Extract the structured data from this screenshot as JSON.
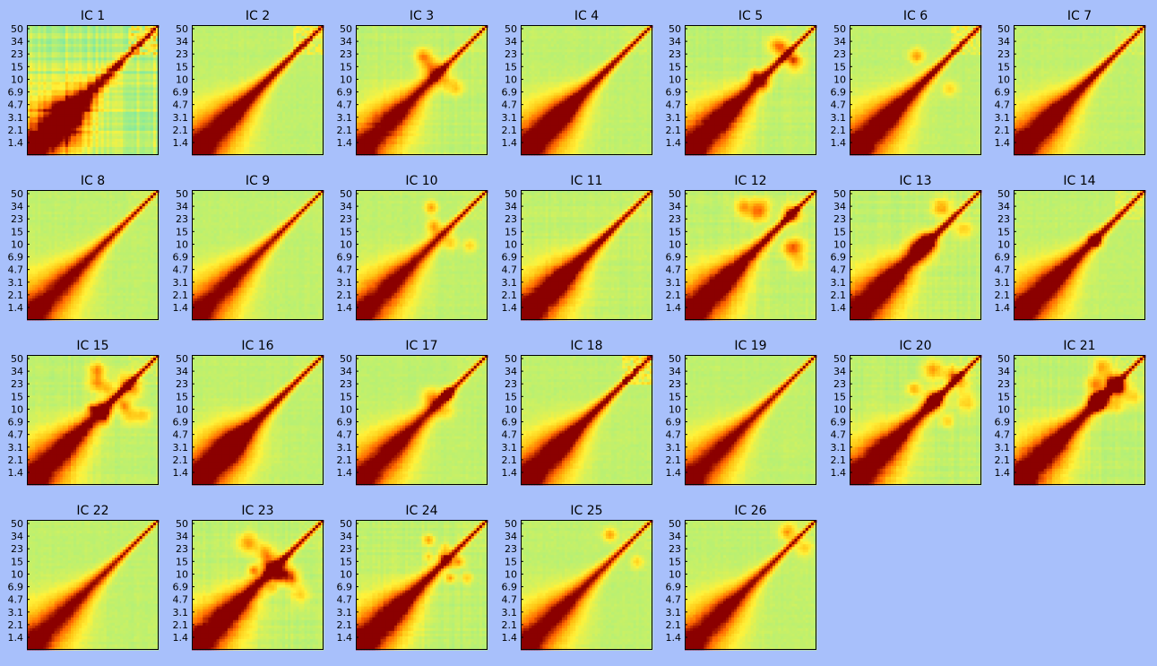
{
  "chart_data": {
    "type": "heatmap",
    "layout": {
      "rows": 4,
      "columns": 7
    },
    "colors": {
      "background": "#a8c0fb",
      "colormap": [
        "#7fe9a4",
        "#b9f072",
        "#fff23a",
        "#ffbf10",
        "#ff6600",
        "#8b0000"
      ]
    },
    "yticks": [
      "50",
      "34",
      "23",
      "15",
      "10",
      "6.9",
      "4.7",
      "3.1",
      "2.1",
      "1.4"
    ],
    "panels": [
      {
        "title": "IC 1",
        "diag_strength": 1.0,
        "blob": 0.95,
        "upper_noise": 0.9,
        "stripes": 0.9,
        "spots": 0
      },
      {
        "title": "IC 2",
        "diag_strength": 1.0,
        "blob": 0.2,
        "upper_noise": 0.5,
        "stripes": 0.1,
        "spots": 0
      },
      {
        "title": "IC 3",
        "diag_strength": 0.9,
        "blob": 0.25,
        "upper_noise": 0.1,
        "stripes": 0.2,
        "spots": 2
      },
      {
        "title": "IC 4",
        "diag_strength": 1.0,
        "blob": 0.35,
        "upper_noise": 0.1,
        "stripes": 0.1,
        "spots": 0
      },
      {
        "title": "IC 5",
        "diag_strength": 1.0,
        "blob": 0.3,
        "upper_noise": 0.1,
        "stripes": 0.2,
        "spots": 3
      },
      {
        "title": "IC 6",
        "diag_strength": 1.0,
        "blob": 0.25,
        "upper_noise": 0.5,
        "stripes": 0.1,
        "spots": 1
      },
      {
        "title": "IC 7",
        "diag_strength": 1.0,
        "blob": 0.25,
        "upper_noise": 0.2,
        "stripes": 0.1,
        "spots": 0
      },
      {
        "title": "IC 8",
        "diag_strength": 0.9,
        "blob": 0.15,
        "upper_noise": 0.1,
        "stripes": 0.1,
        "spots": 0
      },
      {
        "title": "IC 9",
        "diag_strength": 0.9,
        "blob": 0.15,
        "upper_noise": 0.0,
        "stripes": 0.1,
        "spots": 0
      },
      {
        "title": "IC 10",
        "diag_strength": 0.9,
        "blob": 0.2,
        "upper_noise": 0.1,
        "stripes": 0.1,
        "spots": 2
      },
      {
        "title": "IC 11",
        "diag_strength": 1.0,
        "blob": 0.35,
        "upper_noise": 0.1,
        "stripes": 0.2,
        "spots": 0
      },
      {
        "title": "IC 12",
        "diag_strength": 1.0,
        "blob": 0.3,
        "upper_noise": 0.1,
        "stripes": 0.2,
        "spots": 4
      },
      {
        "title": "IC 13",
        "diag_strength": 1.0,
        "blob": 0.3,
        "upper_noise": 0.1,
        "stripes": 0.2,
        "spots": 3
      },
      {
        "title": "IC 14",
        "diag_strength": 1.0,
        "blob": 0.25,
        "upper_noise": 0.3,
        "stripes": 0.1,
        "spots": 1
      },
      {
        "title": "IC 15",
        "diag_strength": 1.0,
        "blob": 0.25,
        "upper_noise": 0.2,
        "stripes": 0.2,
        "spots": 6
      },
      {
        "title": "IC 16",
        "diag_strength": 1.0,
        "blob": 0.6,
        "upper_noise": 0.1,
        "stripes": 0.1,
        "spots": 0
      },
      {
        "title": "IC 17",
        "diag_strength": 0.9,
        "blob": 0.25,
        "upper_noise": 0.1,
        "stripes": 0.1,
        "spots": 2
      },
      {
        "title": "IC 18",
        "diag_strength": 1.0,
        "blob": 0.3,
        "upper_noise": 0.7,
        "stripes": 0.1,
        "spots": 0
      },
      {
        "title": "IC 19",
        "diag_strength": 0.9,
        "blob": 0.15,
        "upper_noise": 0.0,
        "stripes": 0.1,
        "spots": 0
      },
      {
        "title": "IC 20",
        "diag_strength": 1.0,
        "blob": 0.25,
        "upper_noise": 0.2,
        "stripes": 0.2,
        "spots": 4
      },
      {
        "title": "IC 21",
        "diag_strength": 1.0,
        "blob": 0.3,
        "upper_noise": 0.2,
        "stripes": 0.2,
        "spots": 6
      },
      {
        "title": "IC 22",
        "diag_strength": 0.9,
        "blob": 0.15,
        "upper_noise": 0.0,
        "stripes": 0.1,
        "spots": 0
      },
      {
        "title": "IC 23",
        "diag_strength": 1.0,
        "blob": 0.25,
        "upper_noise": 0.1,
        "stripes": 0.2,
        "spots": 5
      },
      {
        "title": "IC 24",
        "diag_strength": 1.0,
        "blob": 0.3,
        "upper_noise": 0.1,
        "stripes": 0.2,
        "spots": 4
      },
      {
        "title": "IC 25",
        "diag_strength": 0.9,
        "blob": 0.2,
        "upper_noise": 0.1,
        "stripes": 0.1,
        "spots": 1
      },
      {
        "title": "IC 26",
        "diag_strength": 0.9,
        "blob": 0.25,
        "upper_noise": 0.1,
        "stripes": 0.1,
        "spots": 1
      }
    ]
  }
}
